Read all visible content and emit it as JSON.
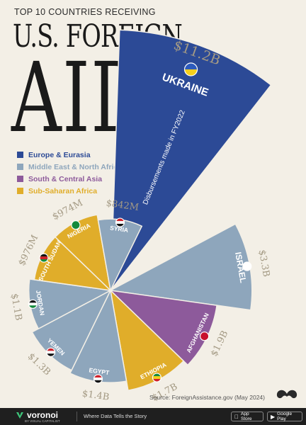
{
  "header": {
    "kicker": "TOP 10 COUNTRIES RECEIVING",
    "title_line1": "U.S. FOREIGN",
    "title_line2": "AID"
  },
  "legend": [
    {
      "label": "Europe & Eurasia",
      "color": "#2c4a96"
    },
    {
      "label": "Middle East & North Africa",
      "color": "#8ea6bc"
    },
    {
      "label": "South & Central Asia",
      "color": "#8d5a9b"
    },
    {
      "label": "Sub-Saharan Africa",
      "color": "#e0ad2a"
    }
  ],
  "chart_data": {
    "type": "polar-area",
    "note": "Disbursements made in FY2022",
    "categories": [
      "Ukraine",
      "Israel",
      "Afghanistan",
      "Ethiopia",
      "Egypt",
      "Yemen",
      "Jordan",
      "South Sudan",
      "Nigeria",
      "Syria"
    ],
    "display_labels": [
      "UKRAINE",
      "ISRAEL",
      "AFGHANISTAN",
      "ETHIOPIA",
      "EGYPT",
      "YEMEN",
      "JORDAN",
      "SOUTH SUDAN",
      "NIGERIA",
      "SYRIA"
    ],
    "value_labels": [
      "$11.2B",
      "$3.3B",
      "$1.9B",
      "$1.7B",
      "$1.4B",
      "$1.3B",
      "$1.1B",
      "$976M",
      "$974M",
      "$842M"
    ],
    "values": [
      11.2,
      3.3,
      1.9,
      1.7,
      1.4,
      1.3,
      1.1,
      0.976,
      0.974,
      0.842
    ],
    "regions": [
      "Europe & Eurasia",
      "Middle East & North Africa",
      "South & Central Asia",
      "Sub-Saharan Africa",
      "Middle East & North Africa",
      "Middle East & North Africa",
      "Middle East & North Africa",
      "Sub-Saharan Africa",
      "Sub-Saharan Africa",
      "Middle East & North Africa"
    ],
    "unit": "billion USD"
  },
  "colors": {
    "Europe & Eurasia": "#2c4a96",
    "Middle East & North Africa": "#8ea6bc",
    "South & Central Asia": "#8d5a9b",
    "Sub-Saharan Africa": "#e0ad2a",
    "value_label": "#a49a84"
  },
  "source": "Source: ForeignAssistance.gov (May 2024)",
  "footer": {
    "brand": "voronoi",
    "brand_sub": "BY VISUAL CAPITALIST",
    "tagline": "Where Data Tells the Story",
    "app_store": "App Store",
    "google_play": "Google Play"
  }
}
